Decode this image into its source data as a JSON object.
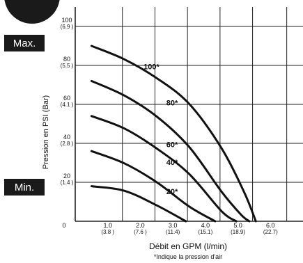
{
  "chart_data": {
    "type": "line",
    "title": "",
    "xlabel": "Débit en GPM (l/min)",
    "ylabel": "Pression en PSI (Bar)",
    "note": "*Indique la pression d'air",
    "xlim": [
      0,
      7
    ],
    "ylim": [
      0,
      110
    ],
    "x_ticks": [
      {
        "value": 1.0,
        "label": "1.0",
        "sub": "(3.8 )"
      },
      {
        "value": 2.0,
        "label": "2.0",
        "sub": "(7.6 )"
      },
      {
        "value": 3.0,
        "label": "3.0",
        "sub": "(11.4)"
      },
      {
        "value": 4.0,
        "label": "4.0",
        "sub": "(15.1)"
      },
      {
        "value": 5.0,
        "label": "5.0",
        "sub": "(18.9)"
      },
      {
        "value": 6.0,
        "label": "6.0",
        "sub": "(22.7)"
      }
    ],
    "y_ticks": [
      {
        "value": 0,
        "label": "0",
        "sub": ""
      },
      {
        "value": 20,
        "label": "20",
        "sub": "(1.4 )"
      },
      {
        "value": 40,
        "label": "40",
        "sub": "(2.8 )"
      },
      {
        "value": 60,
        "label": "60",
        "sub": "(4.1 )"
      },
      {
        "value": 80,
        "label": "80",
        "sub": "(5.5 )"
      },
      {
        "value": 100,
        "label": "100",
        "sub": "(6.9 )"
      }
    ],
    "grid": true,
    "series": [
      {
        "name": "100*",
        "x": [
          0.5,
          1.5,
          2.5,
          3.5,
          4.5,
          5.2,
          5.55
        ],
        "y": [
          90,
          83.2,
          73.5,
          60.3,
          37.4,
          14.6,
          0
        ],
        "label_at": [
          2.1,
          78
        ]
      },
      {
        "name": "80*",
        "x": [
          0.5,
          1.5,
          2.5,
          3.5,
          4.5,
          5.1,
          5.35
        ],
        "y": [
          72,
          64.6,
          53.8,
          38.2,
          15.1,
          3.3,
          0
        ],
        "label_at": [
          2.8,
          59.5
        ]
      },
      {
        "name": "60*",
        "x": [
          0.5,
          1.5,
          2.5,
          3.5,
          4.5,
          4.95
        ],
        "y": [
          54,
          47.7,
          37.4,
          24.3,
          5.1,
          0
        ],
        "label_at": [
          2.8,
          38
        ]
      },
      {
        "name": "40*",
        "x": [
          0.5,
          1.5,
          2.5,
          3.5,
          4.3
        ],
        "y": [
          36,
          29.8,
          20.1,
          7.6,
          0
        ],
        "label_at": [
          2.8,
          29
        ]
      },
      {
        "name": "20*",
        "x": [
          0.5,
          1.5,
          2.5,
          3.4
        ],
        "y": [
          18,
          15.7,
          8.2,
          0
        ],
        "label_at": [
          2.8,
          14
        ]
      }
    ]
  },
  "badges": {
    "max": "Max.",
    "min": "Min."
  }
}
